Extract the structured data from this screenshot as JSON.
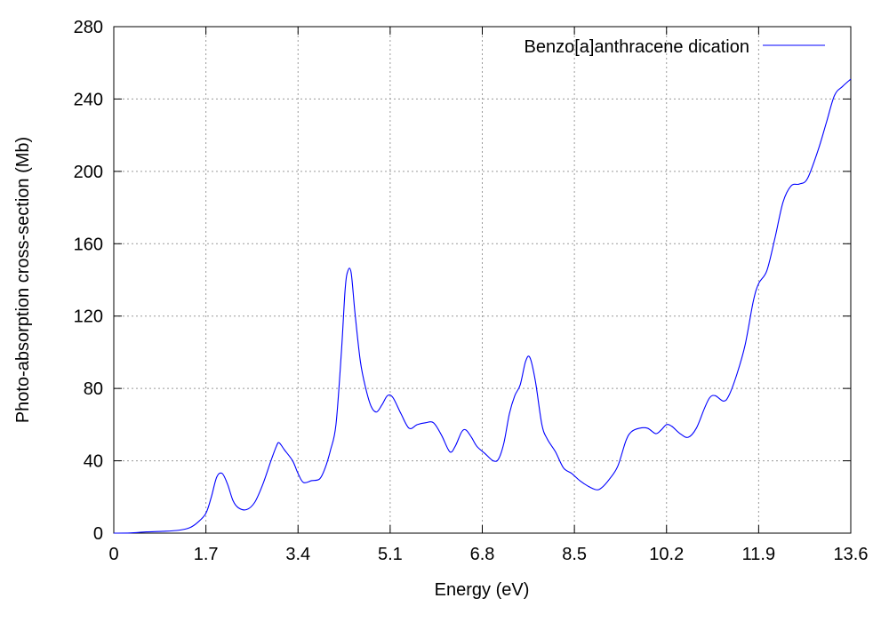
{
  "chart_data": {
    "type": "line",
    "title": "",
    "xlabel": "Energy (eV)",
    "ylabel": "Photo-absorption cross-section (Mb)",
    "xlim": [
      0,
      13.6
    ],
    "ylim": [
      0,
      280
    ],
    "x_ticks": [
      "0",
      "1.7",
      "3.4",
      "5.1",
      "6.8",
      "8.5",
      "10.2",
      "11.9",
      "13.6"
    ],
    "y_ticks": [
      "0",
      "40",
      "80",
      "120",
      "160",
      "200",
      "240",
      "280"
    ],
    "grid": true,
    "legend_position": "top-right",
    "series": [
      {
        "name": "Benzo[a]anthracene dication",
        "color": "#0000ff",
        "points": [
          [
            0.0,
            0
          ],
          [
            0.3,
            0.1
          ],
          [
            0.6,
            0.7
          ],
          [
            0.9,
            1.0
          ],
          [
            1.2,
            1.6
          ],
          [
            1.4,
            3
          ],
          [
            1.55,
            6
          ],
          [
            1.7,
            11
          ],
          [
            1.8,
            20
          ],
          [
            1.9,
            31
          ],
          [
            2.0,
            33
          ],
          [
            2.1,
            27
          ],
          [
            2.2,
            18
          ],
          [
            2.3,
            14
          ],
          [
            2.45,
            13
          ],
          [
            2.6,
            17
          ],
          [
            2.75,
            27
          ],
          [
            2.9,
            40
          ],
          [
            3.0,
            48
          ],
          [
            3.05,
            50
          ],
          [
            3.15,
            46
          ],
          [
            3.3,
            40
          ],
          [
            3.4,
            33
          ],
          [
            3.5,
            28
          ],
          [
            3.65,
            29
          ],
          [
            3.8,
            30
          ],
          [
            3.9,
            36
          ],
          [
            4.0,
            46
          ],
          [
            4.1,
            60
          ],
          [
            4.2,
            100
          ],
          [
            4.27,
            135
          ],
          [
            4.32,
            145
          ],
          [
            4.38,
            144
          ],
          [
            4.45,
            122
          ],
          [
            4.55,
            95
          ],
          [
            4.65,
            80
          ],
          [
            4.75,
            70
          ],
          [
            4.85,
            67
          ],
          [
            4.95,
            71
          ],
          [
            5.05,
            76
          ],
          [
            5.15,
            75
          ],
          [
            5.3,
            66
          ],
          [
            5.45,
            58
          ],
          [
            5.6,
            60
          ],
          [
            5.75,
            61
          ],
          [
            5.9,
            61
          ],
          [
            6.05,
            54
          ],
          [
            6.2,
            45
          ],
          [
            6.3,
            48
          ],
          [
            6.42,
            56
          ],
          [
            6.5,
            57
          ],
          [
            6.6,
            53
          ],
          [
            6.7,
            48
          ],
          [
            6.85,
            44
          ],
          [
            7.0,
            40
          ],
          [
            7.1,
            41
          ],
          [
            7.2,
            50
          ],
          [
            7.3,
            66
          ],
          [
            7.4,
            76
          ],
          [
            7.5,
            82
          ],
          [
            7.6,
            95
          ],
          [
            7.68,
            97
          ],
          [
            7.78,
            84
          ],
          [
            7.9,
            60
          ],
          [
            8.0,
            52
          ],
          [
            8.15,
            45
          ],
          [
            8.3,
            36
          ],
          [
            8.45,
            33
          ],
          [
            8.6,
            29
          ],
          [
            8.75,
            26
          ],
          [
            8.9,
            24
          ],
          [
            9.0,
            25
          ],
          [
            9.15,
            30
          ],
          [
            9.3,
            37
          ],
          [
            9.45,
            51
          ],
          [
            9.55,
            56
          ],
          [
            9.7,
            58
          ],
          [
            9.85,
            58
          ],
          [
            10.0,
            55
          ],
          [
            10.1,
            57
          ],
          [
            10.2,
            60
          ],
          [
            10.3,
            59
          ],
          [
            10.45,
            55
          ],
          [
            10.6,
            53
          ],
          [
            10.75,
            58
          ],
          [
            10.9,
            69
          ],
          [
            11.0,
            75
          ],
          [
            11.1,
            76
          ],
          [
            11.25,
            73
          ],
          [
            11.35,
            76
          ],
          [
            11.5,
            88
          ],
          [
            11.65,
            104
          ],
          [
            11.8,
            128
          ],
          [
            11.9,
            138
          ],
          [
            12.05,
            145
          ],
          [
            12.2,
            163
          ],
          [
            12.35,
            183
          ],
          [
            12.5,
            192
          ],
          [
            12.65,
            193
          ],
          [
            12.8,
            196
          ],
          [
            13.0,
            212
          ],
          [
            13.15,
            227
          ],
          [
            13.3,
            242
          ],
          [
            13.45,
            247
          ],
          [
            13.6,
            251
          ]
        ]
      }
    ]
  }
}
